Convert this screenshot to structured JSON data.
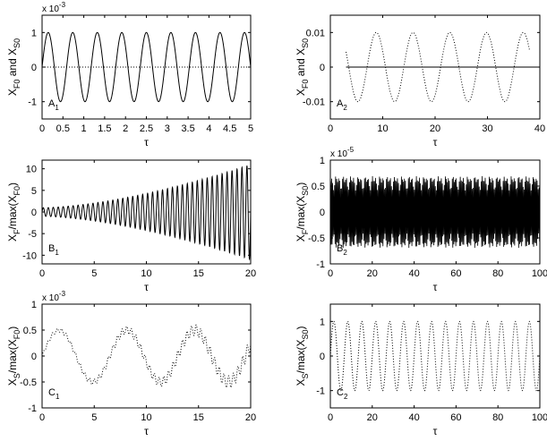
{
  "chart_data": [
    {
      "id": "A1",
      "type": "line",
      "panel_label": "A",
      "panel_sub": "1",
      "xlabel": "τ",
      "ylabel_parts": [
        [
          "X",
          ""
        ],
        [
          "F0",
          "sub"
        ],
        [
          " and X",
          ""
        ],
        [
          "S0",
          "sub"
        ]
      ],
      "xlim": [
        0,
        5
      ],
      "ylim": [
        -1.5,
        1.5
      ],
      "xticks": [
        "0",
        "0.5",
        "1",
        "1.5",
        "2",
        "2.5",
        "3",
        "3.5",
        "4",
        "4.5",
        "5"
      ],
      "yticks": [
        "-1",
        "0",
        "1"
      ],
      "exponent_label": "x 10",
      "exponent_power": "-3",
      "series": [
        {
          "name": "",
          "style": "solid",
          "amplitude": 1.0,
          "periods": 8.5,
          "phase": "sin",
          "range": [
            0,
            5
          ]
        },
        {
          "name": "",
          "style": "dotted",
          "amplitude": 0.0,
          "range": [
            0,
            5
          ]
        }
      ]
    },
    {
      "id": "A2",
      "type": "line",
      "panel_label": "A",
      "panel_sub": "2",
      "xlabel": "τ",
      "ylabel_parts": [
        [
          "X",
          ""
        ],
        [
          "F0",
          "sub"
        ],
        [
          " and X",
          ""
        ],
        [
          "S0",
          "sub"
        ]
      ],
      "xlim": [
        0,
        40
      ],
      "ylim": [
        -0.015,
        0.015
      ],
      "xticks": [
        "0",
        "10",
        "20",
        "30",
        "40"
      ],
      "yticks": [
        "-0.01",
        "0",
        "0.01"
      ],
      "series": [
        {
          "name": "",
          "style": "dotted",
          "amplitude": 0.01,
          "periods": 5.7,
          "phase": "sin",
          "range": [
            3,
            38
          ]
        },
        {
          "name": "",
          "style": "solid",
          "amplitude": 0.0,
          "range": [
            3,
            40
          ]
        }
      ]
    },
    {
      "id": "B1",
      "type": "line",
      "panel_label": "B",
      "panel_sub": "1",
      "xlabel": "τ",
      "ylabel_parts": [
        [
          "X",
          ""
        ],
        [
          "F",
          "sub"
        ],
        [
          "/max(X",
          ""
        ],
        [
          "F0",
          "sub"
        ],
        [
          ")",
          ""
        ]
      ],
      "xlim": [
        0,
        20
      ],
      "ylim": [
        -12,
        12
      ],
      "xticks": [
        "0",
        "5",
        "10",
        "15",
        "20"
      ],
      "yticks": [
        "-10",
        "-5",
        "0",
        "5",
        "10"
      ],
      "series": [
        {
          "name": "",
          "style": "solid",
          "envelope_start": 1.0,
          "envelope_end": 11.0,
          "periods": 42,
          "range": [
            0,
            20
          ]
        }
      ]
    },
    {
      "id": "B2",
      "type": "line",
      "panel_label": "B",
      "panel_sub": "2",
      "xlabel": "τ",
      "ylabel_parts": [
        [
          "X",
          ""
        ],
        [
          "F",
          "sub"
        ],
        [
          "/max(X",
          ""
        ],
        [
          "S0",
          "sub"
        ],
        [
          ")",
          ""
        ]
      ],
      "xlim": [
        0,
        100
      ],
      "ylim": [
        -1,
        1
      ],
      "xticks": [
        "0",
        "20",
        "40",
        "60",
        "80",
        "100"
      ],
      "yticks": [
        "-1",
        "-0.5",
        "0",
        "0.5",
        "1"
      ],
      "exponent_label": "x 10",
      "exponent_power": "-5",
      "series": [
        {
          "name": "",
          "style": "solid",
          "amplitude": 0.75,
          "periods": 210,
          "range": [
            0,
            100
          ]
        }
      ]
    },
    {
      "id": "C1",
      "type": "line",
      "panel_label": "C",
      "panel_sub": "1",
      "xlabel": "τ",
      "ylabel_parts": [
        [
          "X",
          ""
        ],
        [
          "S",
          "sub"
        ],
        [
          "/max(X",
          ""
        ],
        [
          "F0",
          "sub"
        ],
        [
          ")",
          ""
        ]
      ],
      "xlim": [
        0,
        20
      ],
      "ylim": [
        -1,
        1
      ],
      "xticks": [
        "0",
        "5",
        "10",
        "15",
        "20"
      ],
      "yticks": [
        "-1",
        "-0.5",
        "0",
        "0.5",
        "1"
      ],
      "exponent_label": "x 10",
      "exponent_power": "-3",
      "series": [
        {
          "name": "",
          "style": "dotted",
          "amplitude": 0.5,
          "period": 6.5,
          "ripple": 0.1,
          "ripple_periods": 45,
          "range": [
            0,
            20
          ]
        }
      ]
    },
    {
      "id": "C2",
      "type": "line",
      "panel_label": "C",
      "panel_sub": "2",
      "xlabel": "τ",
      "ylabel_parts": [
        [
          "X",
          ""
        ],
        [
          "S",
          "sub"
        ],
        [
          "/max(X",
          ""
        ],
        [
          "S0",
          "sub"
        ],
        [
          ")",
          ""
        ]
      ],
      "xlim": [
        0,
        100
      ],
      "ylim": [
        -1.5,
        1.5
      ],
      "xticks": [
        "0",
        "20",
        "40",
        "60",
        "80",
        "100"
      ],
      "yticks": [
        "-1",
        "0",
        "1"
      ],
      "series": [
        {
          "name": "",
          "style": "dotted",
          "amplitude": 1.0,
          "periods": 15,
          "range": [
            0,
            100
          ]
        }
      ]
    }
  ]
}
